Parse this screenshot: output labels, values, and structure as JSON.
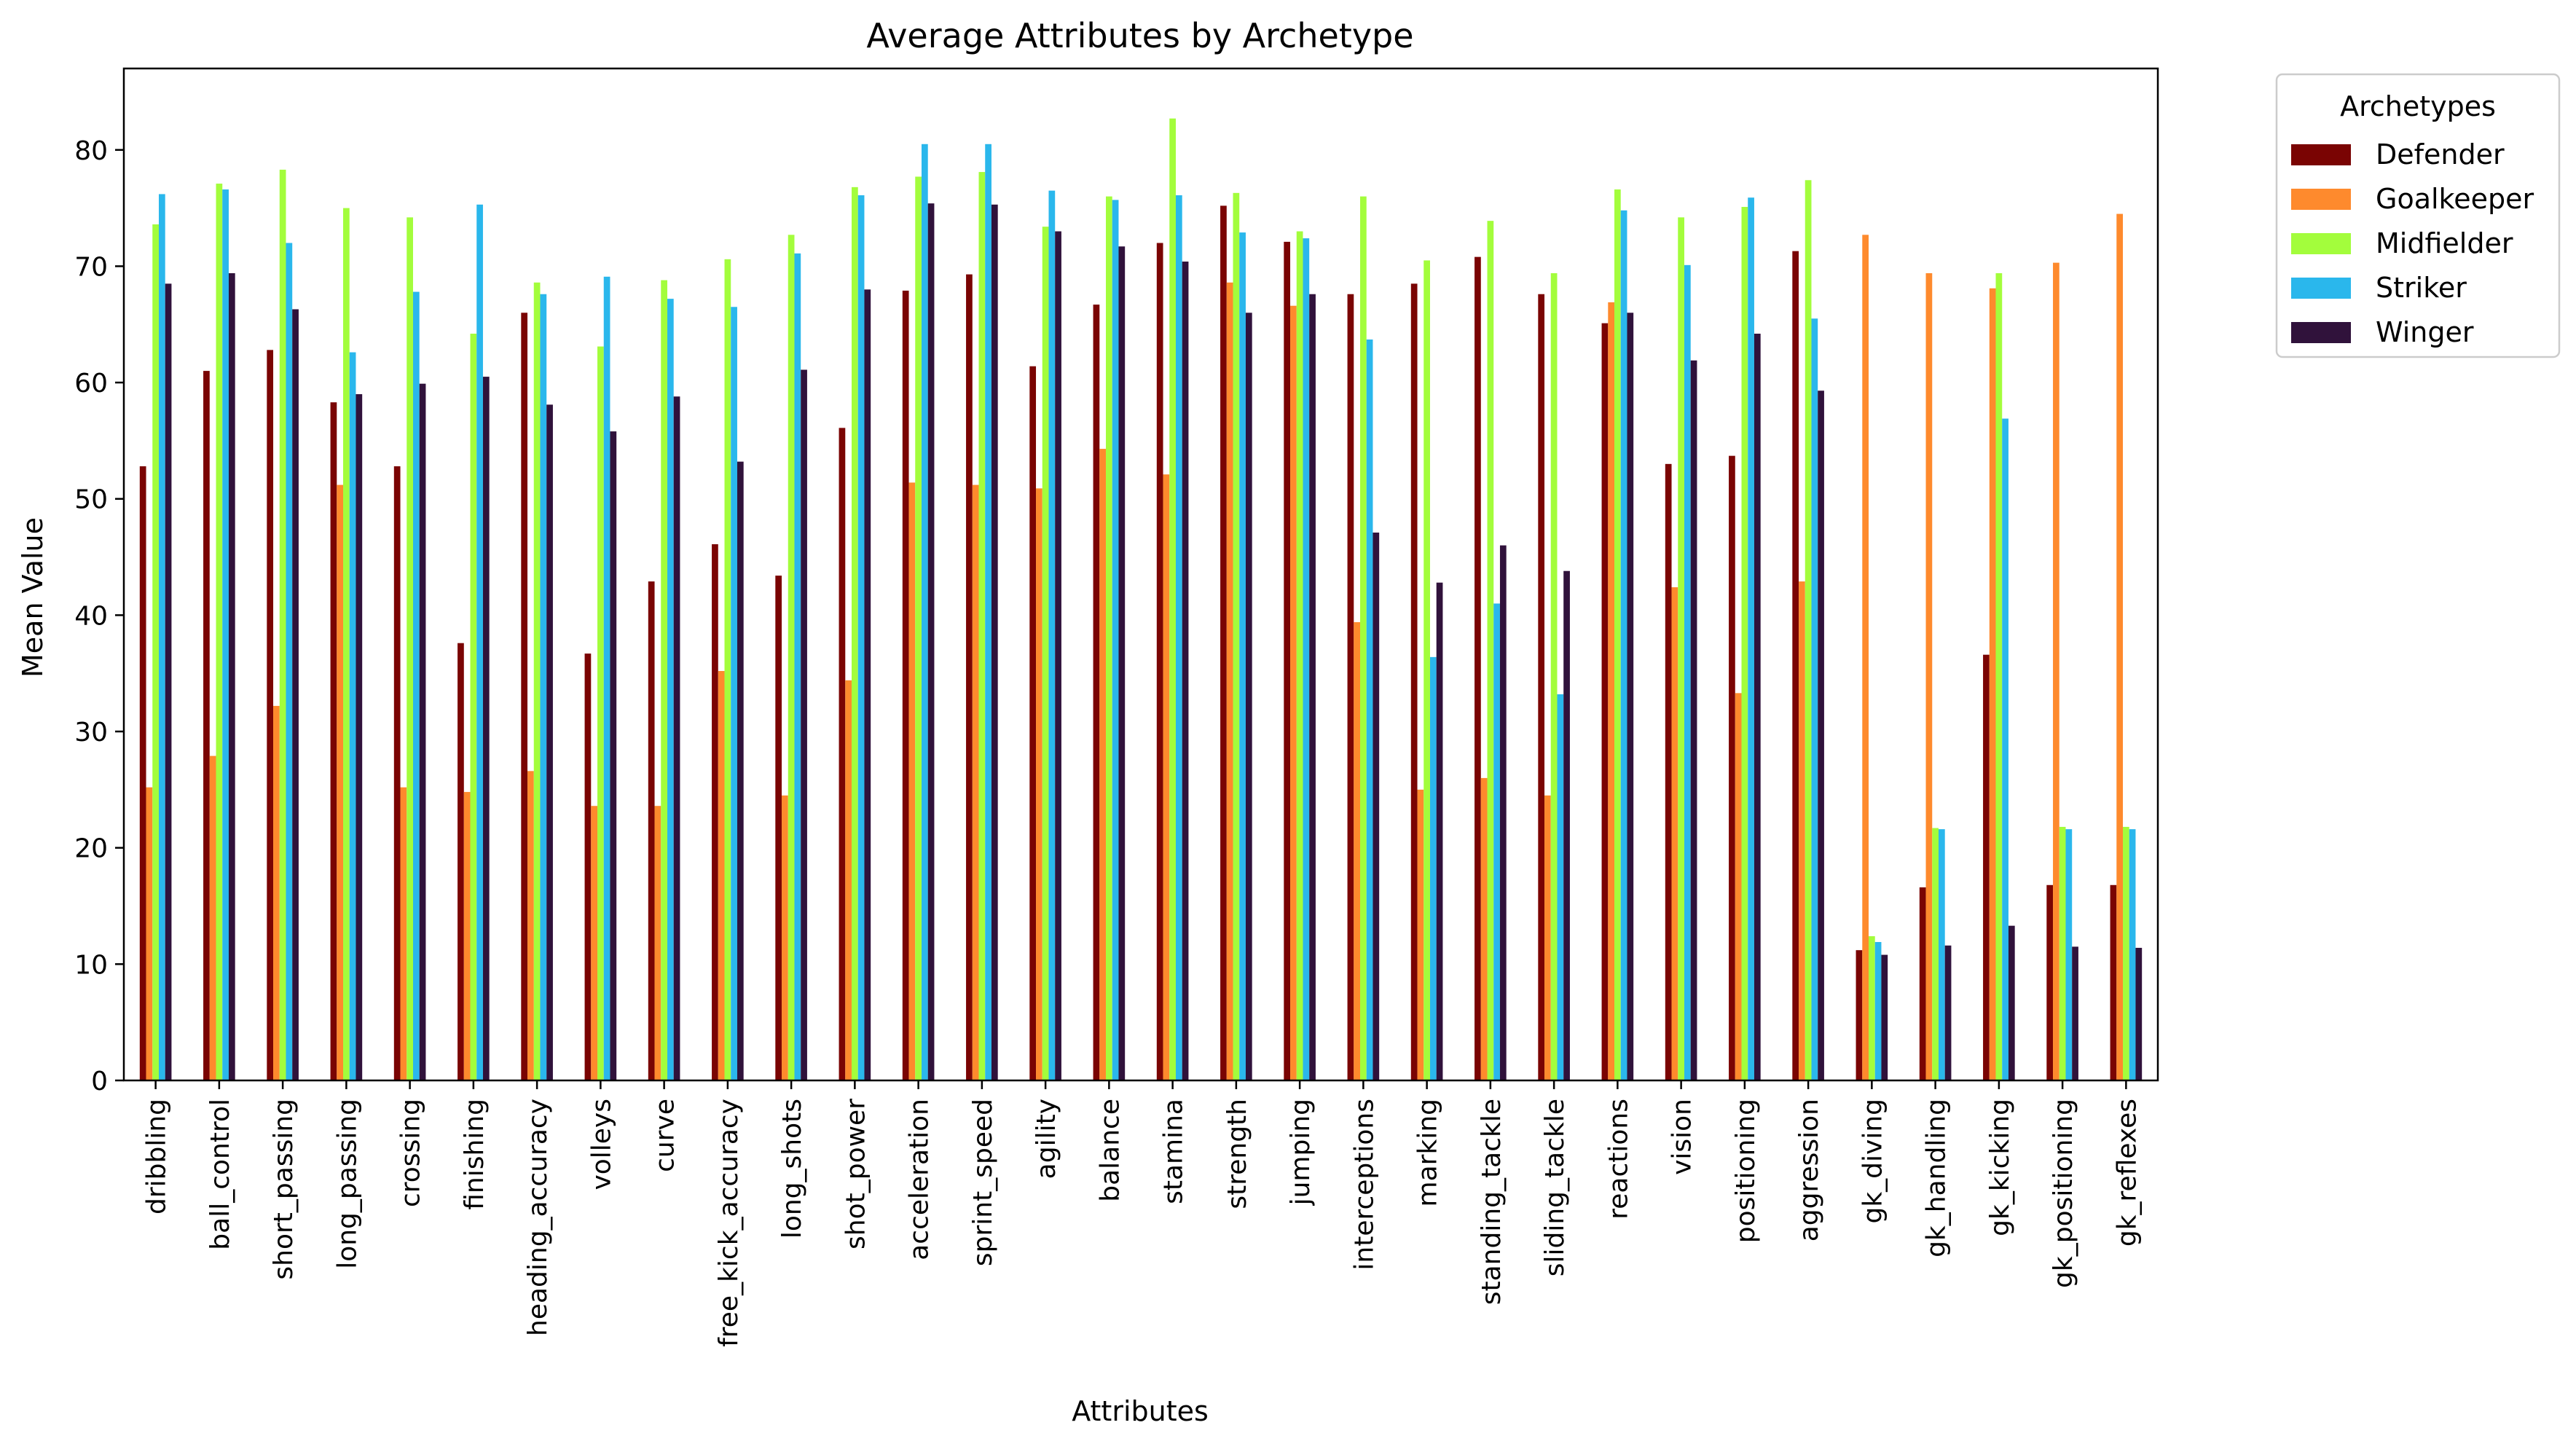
{
  "chart_data": {
    "type": "bar",
    "title": "Average Attributes by Archetype",
    "xlabel": "Attributes",
    "ylabel": "Mean Value",
    "ylim": [
      0,
      87
    ],
    "yticks": [
      0,
      10,
      20,
      30,
      40,
      50,
      60,
      70,
      80
    ],
    "grid": false,
    "legend": {
      "title": "Archetypes",
      "placement": "outside-top-right"
    },
    "categories": [
      "dribbling",
      "ball_control",
      "short_passing",
      "long_passing",
      "crossing",
      "finishing",
      "heading_accuracy",
      "volleys",
      "curve",
      "free_kick_accuracy",
      "long_shots",
      "shot_power",
      "acceleration",
      "sprint_speed",
      "agility",
      "balance",
      "stamina",
      "strength",
      "jumping",
      "interceptions",
      "marking",
      "standing_tackle",
      "sliding_tackle",
      "reactions",
      "vision",
      "positioning",
      "aggression",
      "gk_diving",
      "gk_handling",
      "gk_kicking",
      "gk_positioning",
      "gk_reflexes"
    ],
    "series": [
      {
        "name": "Defender",
        "color": "#7a0403",
        "values": [
          52.8,
          61.0,
          62.8,
          58.3,
          52.8,
          37.6,
          66.0,
          36.7,
          42.9,
          46.1,
          43.4,
          56.1,
          67.9,
          69.3,
          61.4,
          66.7,
          72.0,
          75.2,
          72.1,
          67.6,
          68.5,
          70.8,
          67.6,
          65.1,
          53.0,
          53.7,
          71.3,
          11.2,
          16.6,
          36.6,
          16.8,
          16.8
        ]
      },
      {
        "name": "Goalkeeper",
        "color": "#fe8a2d",
        "values": [
          25.2,
          27.9,
          32.2,
          51.2,
          25.2,
          24.8,
          26.6,
          23.6,
          23.6,
          35.2,
          24.5,
          34.4,
          51.4,
          51.2,
          50.9,
          54.3,
          52.1,
          68.6,
          66.6,
          39.4,
          25.0,
          26.0,
          24.5,
          66.9,
          42.4,
          33.3,
          42.9,
          72.7,
          69.4,
          68.1,
          70.3,
          74.5
        ]
      },
      {
        "name": "Midfielder",
        "color": "#a3fd3c",
        "values": [
          73.6,
          77.1,
          78.3,
          75.0,
          74.2,
          64.2,
          68.6,
          63.1,
          68.8,
          70.6,
          72.7,
          76.8,
          77.7,
          78.1,
          73.4,
          76.0,
          82.7,
          76.3,
          73.0,
          76.0,
          70.5,
          73.9,
          69.4,
          76.6,
          74.2,
          75.1,
          77.4,
          12.4,
          21.7,
          69.4,
          21.8,
          21.8
        ]
      },
      {
        "name": "Striker",
        "color": "#2ab7ec",
        "values": [
          76.2,
          76.6,
          72.0,
          62.6,
          67.8,
          75.3,
          67.6,
          69.1,
          67.2,
          66.5,
          71.1,
          76.1,
          80.5,
          80.5,
          76.5,
          75.7,
          76.1,
          72.9,
          72.4,
          63.7,
          36.4,
          41.0,
          33.2,
          74.8,
          70.1,
          75.9,
          65.5,
          11.9,
          21.6,
          56.9,
          21.6,
          21.6
        ]
      },
      {
        "name": "Winger",
        "color": "#30123b",
        "values": [
          68.5,
          69.4,
          66.3,
          59.0,
          59.9,
          60.5,
          58.1,
          55.8,
          58.8,
          53.2,
          61.1,
          68.0,
          75.4,
          75.3,
          73.0,
          71.7,
          70.4,
          66.0,
          67.6,
          47.1,
          42.8,
          46.0,
          43.8,
          66.0,
          61.9,
          64.2,
          59.3,
          10.8,
          11.6,
          13.3,
          11.5,
          11.4
        ]
      }
    ]
  }
}
